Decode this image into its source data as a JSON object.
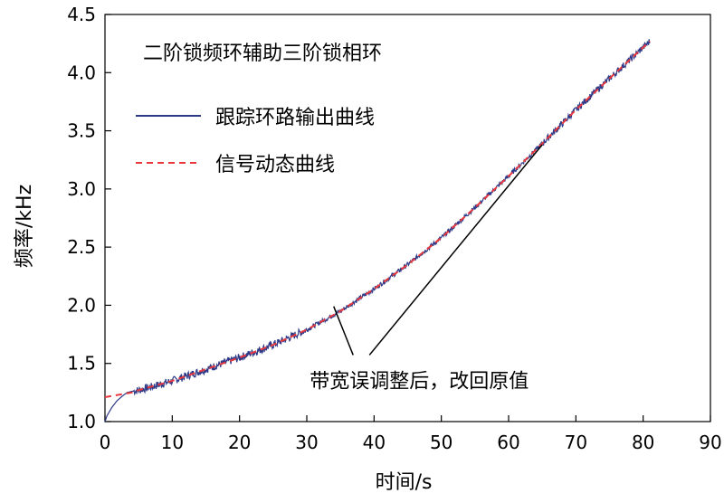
{
  "chart_data": {
    "type": "line",
    "title": "二阶锁频环辅助三阶锁相环",
    "xlabel": "时间/s",
    "ylabel": "频率/kHz",
    "xlim": [
      0,
      90
    ],
    "ylim": [
      1.0,
      4.5
    ],
    "x_ticks": [
      0,
      10,
      20,
      30,
      40,
      50,
      60,
      70,
      80,
      90
    ],
    "y_ticks": [
      1.0,
      1.5,
      2.0,
      2.5,
      3.0,
      3.5,
      4.0,
      4.5
    ],
    "x_tick_labels": [
      "0",
      "10",
      "20",
      "30",
      "40",
      "50",
      "60",
      "70",
      "80",
      "90"
    ],
    "y_tick_labels": [
      "1.0",
      "1.5",
      "2.0",
      "2.5",
      "3.0",
      "3.5",
      "4.0",
      "4.5"
    ],
    "grid": false,
    "legend_position": "top-left",
    "series": [
      {
        "name": "跟踪环路输出曲线",
        "color": "#2e3a87",
        "style": "solid-noisy",
        "x": [
          0,
          0.3,
          1.0,
          1.8,
          2.6,
          3.3,
          4,
          5,
          7,
          10,
          15,
          20,
          25,
          30,
          35,
          40,
          45,
          50,
          55,
          60,
          65,
          70,
          75,
          81
        ],
        "y": [
          1.0,
          1.05,
          1.12,
          1.18,
          1.22,
          1.25,
          1.26,
          1.27,
          1.3,
          1.35,
          1.45,
          1.55,
          1.66,
          1.79,
          1.95,
          2.14,
          2.35,
          2.58,
          2.84,
          3.11,
          3.39,
          3.68,
          3.95,
          4.27
        ]
      },
      {
        "name": "信号动态曲线",
        "color": "#e8383d",
        "style": "dashed",
        "x": [
          0,
          4,
          5,
          10,
          15,
          20,
          25,
          30,
          35,
          40,
          45,
          50,
          55,
          60,
          65,
          70,
          75,
          81
        ],
        "y": [
          1.21,
          1.25,
          1.27,
          1.35,
          1.45,
          1.55,
          1.66,
          1.79,
          1.95,
          2.14,
          2.35,
          2.58,
          2.84,
          3.11,
          3.39,
          3.68,
          3.95,
          4.27
        ]
      }
    ],
    "annotation": {
      "text": "带宽误调整后，改回原值",
      "pointer_targets": [
        [
          34,
          1.99
        ],
        [
          65,
          3.38
        ]
      ],
      "text_anchor": [
        42,
        1.51
      ]
    }
  }
}
